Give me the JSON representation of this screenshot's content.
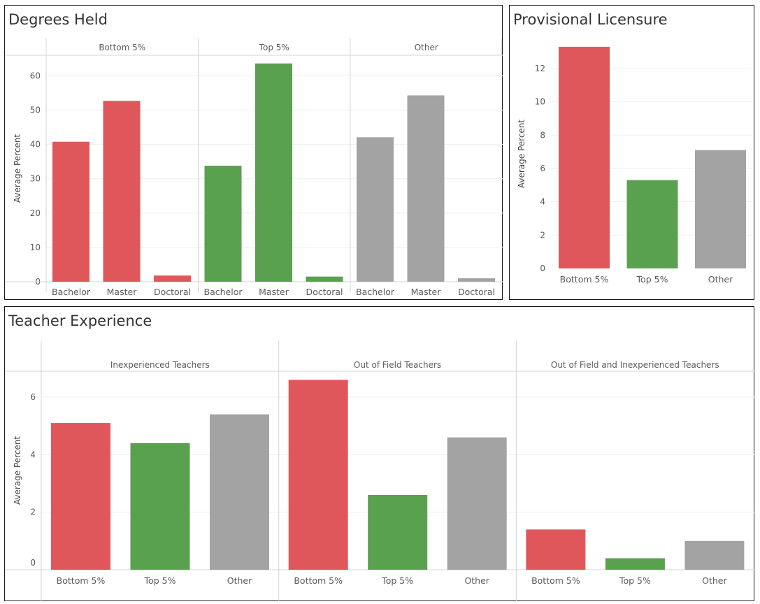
{
  "panels": {
    "degrees": {
      "title": "Degrees Held"
    },
    "licensure": {
      "title": "Provisional Licensure"
    },
    "experience": {
      "title": "Teacher Experience"
    }
  },
  "colors": {
    "bottom": "#e0575b",
    "top": "#59a14f",
    "other": "#a3a3a3",
    "grid": "#efefef",
    "axis": "#d4d4d4",
    "text": "#5a5a5a"
  },
  "chart_data": [
    {
      "type": "bar",
      "title": "Degrees Held",
      "ylabel": "Average Percent",
      "ylim": [
        0,
        66
      ],
      "yticks": [
        0,
        10,
        20,
        30,
        40,
        50,
        60
      ],
      "groups": [
        "Bottom 5%",
        "Top 5%",
        "Other"
      ],
      "categories": [
        "Bachelor",
        "Master",
        "Doctoral"
      ],
      "series": [
        {
          "name": "Bottom 5%",
          "color": "bottom",
          "values": [
            40.8,
            52.7,
            1.8
          ]
        },
        {
          "name": "Top 5%",
          "color": "top",
          "values": [
            33.8,
            63.6,
            1.5
          ]
        },
        {
          "name": "Other",
          "color": "other",
          "values": [
            42.1,
            54.3,
            1.0
          ]
        }
      ]
    },
    {
      "type": "bar",
      "title": "Provisional Licensure",
      "ylabel": "Average Percent",
      "ylim": [
        0,
        13.8
      ],
      "yticks": [
        0,
        2,
        4,
        6,
        8,
        10,
        12
      ],
      "categories": [
        "Bottom 5%",
        "Top 5%",
        "Other"
      ],
      "colors": [
        "bottom",
        "top",
        "other"
      ],
      "values": [
        13.3,
        5.3,
        7.1
      ]
    },
    {
      "type": "bar",
      "title": "Teacher Experience",
      "ylabel": "Average Percent",
      "ylim": [
        0,
        6.9
      ],
      "yticks": [
        0,
        2,
        4,
        6
      ],
      "groups": [
        "Inexperienced Teachers",
        "Out of Field Teachers",
        "Out of Field and Inexperienced Teachers"
      ],
      "categories": [
        "Bottom 5%",
        "Top 5%",
        "Other"
      ],
      "colors": [
        "bottom",
        "top",
        "other"
      ],
      "series": [
        {
          "name": "Inexperienced Teachers",
          "values": [
            5.1,
            4.4,
            5.4
          ]
        },
        {
          "name": "Out of Field Teachers",
          "values": [
            6.6,
            2.6,
            4.6
          ]
        },
        {
          "name": "Out of Field and Inexperienced Teachers",
          "values": [
            1.4,
            0.4,
            1.0
          ]
        }
      ]
    }
  ]
}
